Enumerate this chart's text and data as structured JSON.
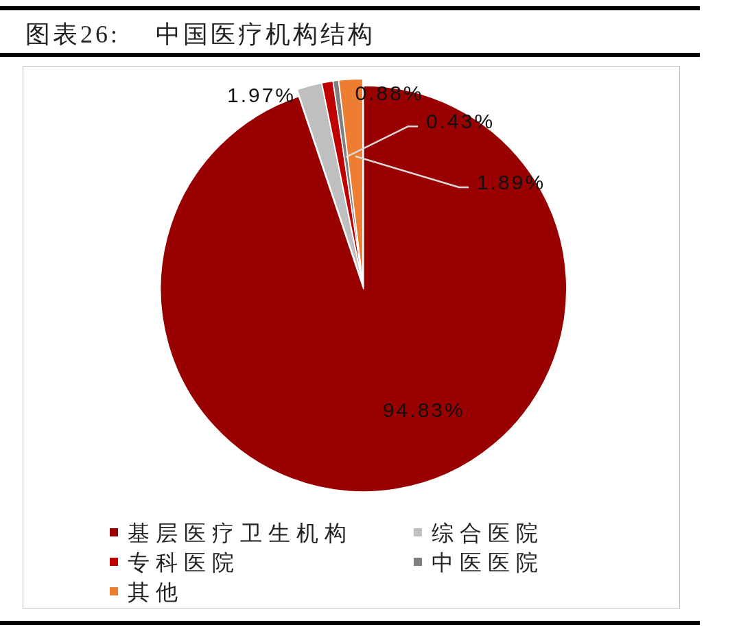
{
  "chart_data": {
    "type": "pie",
    "title": "图表26:    中国医疗机构结构",
    "categories": [
      "基层医疗卫生机构",
      "综合医院",
      "专科医院",
      "中医医院",
      "其他"
    ],
    "values": [
      94.83,
      1.97,
      0.88,
      0.43,
      1.89
    ],
    "colors": [
      "#990000",
      "#bfbfbf",
      "#c00000",
      "#808080",
      "#ed7d31"
    ],
    "value_labels": [
      "94.83%",
      "1.97%",
      "0.88%",
      "0.43%",
      "1.89%"
    ],
    "legend": "bottom"
  }
}
